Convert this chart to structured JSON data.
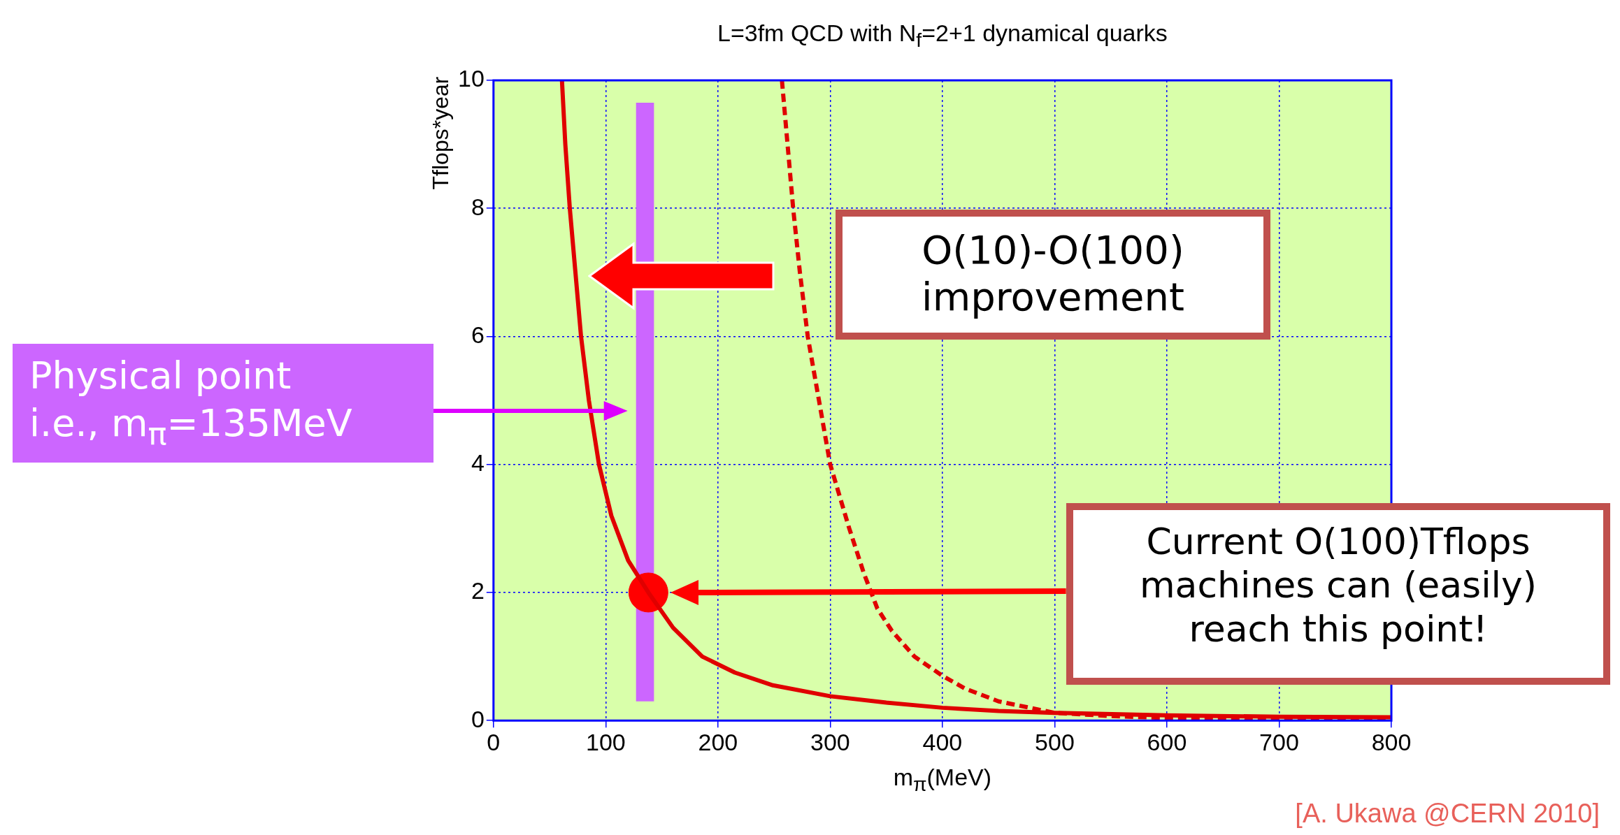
{
  "chart_data": {
    "type": "line",
    "title": "L=3fm QCD with N$_{f}$=2+1 dynamical quarks",
    "xlabel": "m$_{π}$(MeV)",
    "ylabel": "Tflops*year",
    "xlim": [
      0,
      800
    ],
    "xticks": [
      0,
      100,
      200,
      300,
      400,
      500,
      600,
      700,
      800
    ],
    "ylim": [
      0,
      10
    ],
    "yticks": [
      0,
      2,
      4,
      6,
      8,
      10
    ],
    "grid": true,
    "legend": false,
    "series": [
      {
        "color": "#e00000",
        "line_style": "solid",
        "x": [
          61,
          64,
          68,
          73,
          78,
          85,
          94,
          105,
          120,
          138,
          160,
          186,
          215,
          249,
          300,
          350,
          400,
          450,
          500,
          600,
          700,
          800
        ],
        "values": [
          10,
          9,
          8,
          7,
          6,
          5,
          4,
          3.2,
          2.5,
          2,
          1.45,
          1,
          0.75,
          0.55,
          0.38,
          0.28,
          0.2,
          0.15,
          0.12,
          0.08,
          0.06,
          0.05
        ]
      },
      {
        "color": "#e00000",
        "line_style": "dashed",
        "x": [
          257,
          262,
          267,
          273,
          280,
          290,
          300,
          317,
          330,
          342,
          355,
          375,
          400,
          420,
          450,
          500,
          550,
          600,
          700,
          800
        ],
        "values": [
          10,
          9,
          8,
          7,
          6,
          5,
          4,
          3,
          2.3,
          1.75,
          1.4,
          1,
          0.7,
          0.5,
          0.3,
          0.12,
          0.07,
          0.04,
          0.02,
          0.01
        ]
      },
      {
        "type": "scatter",
        "color": "#ff0000",
        "marker": "circle",
        "x": [
          138
        ],
        "values": [
          2
        ]
      }
    ],
    "bands": [
      {
        "axis": "x",
        "from": 127,
        "to": 143,
        "color": "#cc66ff"
      }
    ],
    "annotations": [
      "O(10)-O(100)\nimprovement",
      "Current O(100)Tflops\nmachines can (easily)\nreach this point!",
      "[A. Ukawa @CERN 2010]",
      "Physical point\ni.e., m$_{π}$=135MeV"
    ]
  }
}
